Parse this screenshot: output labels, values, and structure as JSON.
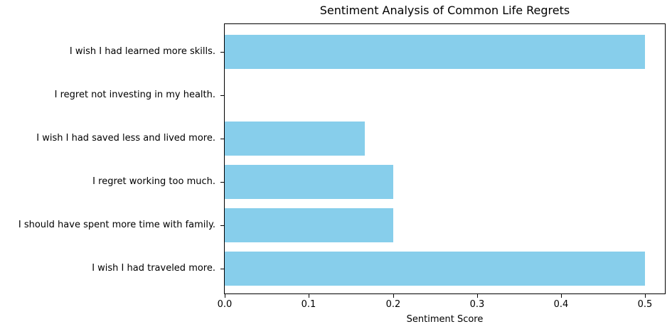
{
  "chart_data": {
    "type": "bar",
    "orientation": "horizontal",
    "title": "Sentiment Analysis of Common Life Regrets",
    "xlabel": "Sentiment Score",
    "ylabel": "",
    "categories": [
      "I wish I had learned more skills.",
      "I regret not investing in my health.",
      "I wish I had saved less and lived more.",
      "I regret working too much.",
      "I should have spent more time with family.",
      "I wish I had traveled more."
    ],
    "values": [
      0.5,
      0.0,
      0.1667,
      0.2,
      0.2,
      0.5
    ],
    "x_ticks": [
      0.0,
      0.1,
      0.2,
      0.3,
      0.4,
      0.5
    ],
    "x_tick_labels": [
      "0.0",
      "0.1",
      "0.2",
      "0.3",
      "0.4",
      "0.5"
    ],
    "xlim": [
      0,
      0.525
    ],
    "bar_color": "#87CEEB",
    "spine_color": "#000000",
    "grid": false,
    "legend": "none",
    "background": "#ffffff"
  }
}
